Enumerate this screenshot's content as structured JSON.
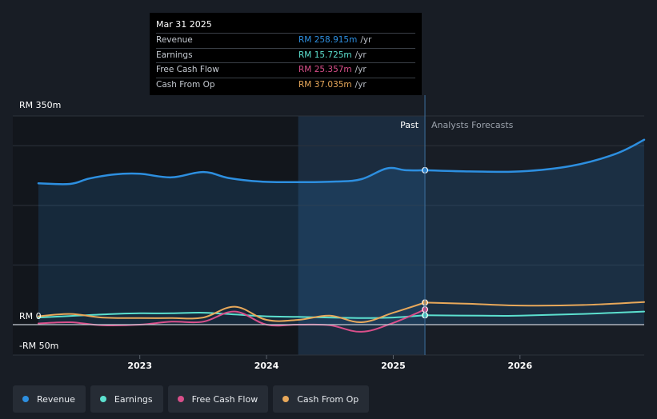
{
  "tooltip": {
    "date": "Mar 31 2025",
    "rows": [
      {
        "label": "Revenue",
        "value": "RM 258.915m",
        "unit": "/yr",
        "color": "#2d8fe0"
      },
      {
        "label": "Earnings",
        "value": "RM 15.725m",
        "unit": "/yr",
        "color": "#5ce0cf"
      },
      {
        "label": "Free Cash Flow",
        "value": "RM 25.357m",
        "unit": "/yr",
        "color": "#d94f8a"
      },
      {
        "label": "Cash From Op",
        "value": "RM 37.035m",
        "unit": "/yr",
        "color": "#e8a85a"
      }
    ]
  },
  "legend": [
    {
      "label": "Revenue",
      "color": "#2d8fe0"
    },
    {
      "label": "Earnings",
      "color": "#5ce0cf"
    },
    {
      "label": "Free Cash Flow",
      "color": "#d94f8a"
    },
    {
      "label": "Cash From Op",
      "color": "#e8a85a"
    }
  ],
  "chart_data": {
    "type": "line",
    "title": "",
    "xlabel": "",
    "ylabel": "",
    "ylim": [
      -50,
      350
    ],
    "xlim": [
      2022.2,
      2026.98
    ],
    "y_tick_labels": [
      "RM 350m",
      "RM 0",
      "-RM 50m"
    ],
    "x_ticks": [
      {
        "value": 2023,
        "label": "2023"
      },
      {
        "value": 2024,
        "label": "2024"
      },
      {
        "value": 2025,
        "label": "2025"
      },
      {
        "value": 2026,
        "label": "2026"
      }
    ],
    "highlight_range": [
      2024.25,
      2025.25
    ],
    "divider_x": 2025.25,
    "past_label": "Past",
    "forecast_label": "Analysts Forecasts",
    "series": [
      {
        "name": "Revenue",
        "color": "#2d8fe0",
        "x": [
          2022.2,
          2022.45,
          2022.6,
          2022.8,
          2023.0,
          2023.25,
          2023.5,
          2023.7,
          2023.95,
          2024.25,
          2024.55,
          2024.75,
          2024.95,
          2025.1,
          2025.25
        ],
        "values": [
          237,
          236,
          245,
          252,
          253,
          247,
          256,
          246,
          240,
          239,
          240,
          244,
          262,
          259,
          259
        ],
        "forecast_x": [
          2025.25,
          2025.6,
          2026.0,
          2026.4,
          2026.75,
          2026.98
        ],
        "forecast_values": [
          259,
          257,
          257,
          266,
          286,
          310
        ]
      },
      {
        "name": "Earnings",
        "color": "#5ce0cf",
        "x": [
          2022.2,
          2022.5,
          2022.8,
          2023.0,
          2023.25,
          2023.5,
          2023.75,
          2024.0,
          2024.25,
          2024.5,
          2024.75,
          2025.0,
          2025.25
        ],
        "values": [
          12,
          15,
          18,
          19,
          19,
          20,
          17,
          14,
          13,
          12,
          11,
          12,
          15.7
        ],
        "forecast_x": [
          2025.25,
          2025.7,
          2026.0,
          2026.5,
          2026.98
        ],
        "forecast_values": [
          15.7,
          15,
          15,
          18,
          22
        ]
      },
      {
        "name": "Free Cash Flow",
        "color": "#d94f8a",
        "x": [
          2022.2,
          2022.45,
          2022.7,
          2023.0,
          2023.25,
          2023.5,
          2023.75,
          2024.0,
          2024.25,
          2024.5,
          2024.75,
          2025.0,
          2025.25
        ],
        "values": [
          2,
          4,
          -1,
          0,
          5,
          5,
          22,
          0,
          0,
          -1,
          -12,
          3,
          25.4
        ]
      },
      {
        "name": "Cash From Op",
        "color": "#e8a85a",
        "x": [
          2022.2,
          2022.45,
          2022.7,
          2023.0,
          2023.25,
          2023.5,
          2023.75,
          2024.0,
          2024.25,
          2024.5,
          2024.75,
          2025.0,
          2025.25
        ],
        "values": [
          14,
          18,
          12,
          11,
          11,
          12,
          30,
          8,
          8,
          15,
          4,
          20,
          37
        ],
        "forecast_x": [
          2025.25,
          2025.6,
          2026.0,
          2026.5,
          2026.98
        ],
        "forecast_values": [
          37,
          35,
          32,
          33,
          38
        ]
      }
    ]
  }
}
